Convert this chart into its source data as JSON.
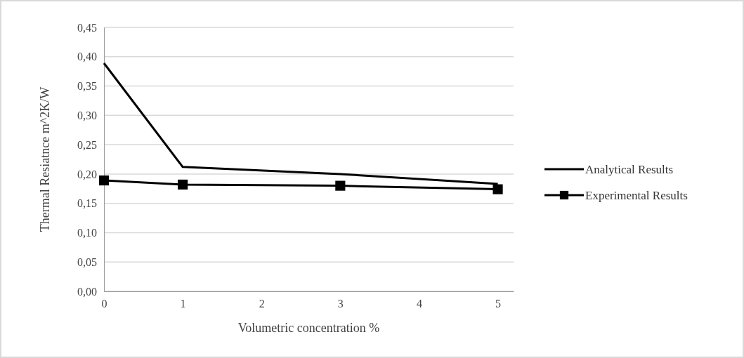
{
  "chart_data": {
    "type": "line",
    "xlabel": "Volumetric concentration %",
    "ylabel": "Thermal Resiatnce  m^2K/W",
    "x": [
      0,
      1,
      3,
      5
    ],
    "series": [
      {
        "name": "Analytical Results",
        "color": "#000000",
        "values": [
          0.389,
          0.212,
          0.2,
          0.183
        ],
        "marker": "none"
      },
      {
        "name": "Experimental Results",
        "color": "#000000",
        "values": [
          0.189,
          0.182,
          0.18,
          0.174
        ],
        "marker": "square"
      }
    ],
    "xlim": [
      0,
      5.2
    ],
    "xticks": [
      0,
      1,
      2,
      3,
      4,
      5
    ],
    "ylim": [
      0,
      0.45
    ],
    "yticks": [
      {
        "value": 0,
        "label": "0,00"
      },
      {
        "value": 0.05,
        "label": "0,05"
      },
      {
        "value": 0.1,
        "label": "0,10"
      },
      {
        "value": 0.15,
        "label": "0,15"
      },
      {
        "value": 0.2,
        "label": "0,20"
      },
      {
        "value": 0.25,
        "label": "0,25"
      },
      {
        "value": 0.3,
        "label": "0,30"
      },
      {
        "value": 0.35,
        "label": "0,35"
      },
      {
        "value": 0.4,
        "label": "0,40"
      },
      {
        "value": 0.45,
        "label": "0,45"
      }
    ],
    "grid": "y",
    "legend": "right",
    "line_style": "solid"
  }
}
